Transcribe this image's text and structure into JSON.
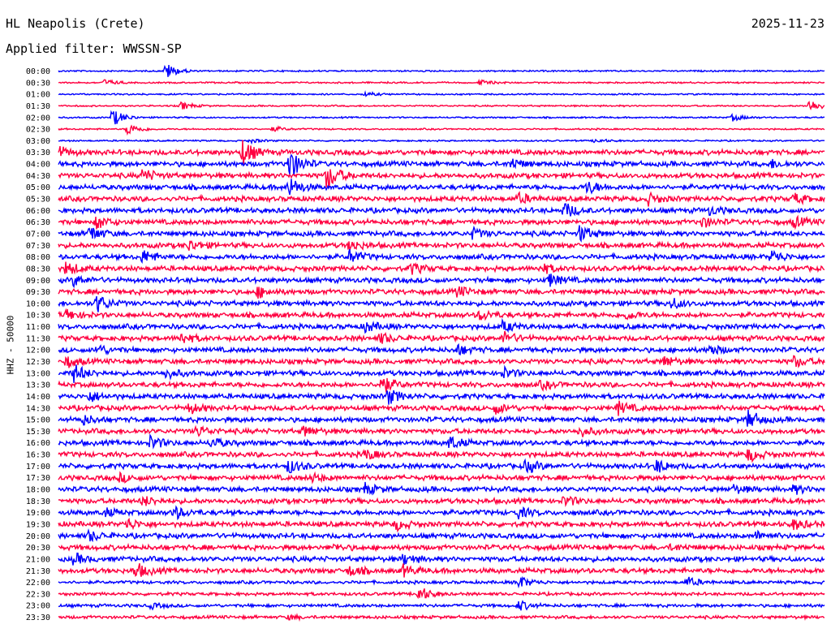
{
  "header": {
    "station": "HL Neapolis (Crete)",
    "date": "2025-11-23",
    "filter": "Applied filter: WWSSN-SP"
  },
  "chart_data": {
    "type": "line",
    "title": "HL Neapolis (Crete)",
    "ylabel": "HHZ - 50000",
    "colors": [
      "#0000ff",
      "#ff0040"
    ],
    "grid": false,
    "rows": [
      {
        "label": "00:00",
        "events": [
          [
            14,
            3.2
          ]
        ]
      },
      {
        "label": "00:30",
        "events": [
          [
            6,
            1.2
          ],
          [
            55,
            1.0
          ]
        ]
      },
      {
        "label": "01:00",
        "events": [
          [
            40,
            0.8
          ]
        ]
      },
      {
        "label": "01:30",
        "events": [
          [
            16,
            1.5
          ],
          [
            98,
            2.5
          ]
        ]
      },
      {
        "label": "02:00",
        "events": [
          [
            7,
            3.5
          ],
          [
            88,
            1.3
          ]
        ]
      },
      {
        "label": "02:30",
        "events": [
          [
            9,
            2.5
          ],
          [
            28,
            1.0
          ]
        ]
      },
      {
        "label": "03:00",
        "events": [
          [
            25,
            0.8
          ],
          [
            70,
            0.8
          ]
        ]
      },
      {
        "label": "03:30",
        "events": [
          [
            0,
            2.0
          ],
          [
            24,
            5.0
          ]
        ]
      },
      {
        "label": "04:00",
        "events": [
          [
            30,
            6.5
          ],
          [
            59,
            2.0
          ],
          [
            93,
            1.5
          ]
        ]
      },
      {
        "label": "04:30",
        "events": [
          [
            11,
            2.5
          ],
          [
            35,
            5.5
          ]
        ]
      },
      {
        "label": "05:00",
        "events": [
          [
            30,
            4.0
          ],
          [
            69,
            2.5
          ]
        ]
      },
      {
        "label": "05:30",
        "events": [
          [
            60,
            2.0
          ],
          [
            77,
            2.0
          ],
          [
            96,
            2.0
          ]
        ]
      },
      {
        "label": "06:00",
        "events": [
          [
            66,
            3.0
          ],
          [
            85,
            1.5
          ]
        ]
      },
      {
        "label": "06:30",
        "events": [
          [
            5,
            2.5
          ],
          [
            84,
            2.0
          ],
          [
            96,
            2.0
          ]
        ]
      },
      {
        "label": "07:00",
        "events": [
          [
            4,
            3.0
          ],
          [
            54,
            2.0
          ],
          [
            68,
            3.0
          ]
        ]
      },
      {
        "label": "07:30",
        "events": [
          [
            17,
            2.0
          ],
          [
            38,
            2.0
          ]
        ]
      },
      {
        "label": "08:00",
        "events": [
          [
            11,
            2.5
          ],
          [
            38,
            2.5
          ],
          [
            93,
            2.5
          ]
        ]
      },
      {
        "label": "08:30",
        "events": [
          [
            1,
            2.5
          ],
          [
            46,
            2.0
          ],
          [
            63,
            2.0
          ]
        ]
      },
      {
        "label": "09:00",
        "events": [
          [
            2,
            2.0
          ],
          [
            64,
            2.5
          ]
        ]
      },
      {
        "label": "09:30",
        "events": [
          [
            26,
            2.0
          ],
          [
            52,
            2.0
          ]
        ]
      },
      {
        "label": "10:00",
        "events": [
          [
            5,
            3.5
          ],
          [
            80,
            2.0
          ]
        ]
      },
      {
        "label": "10:30",
        "events": [
          [
            1,
            2.0
          ],
          [
            55,
            2.0
          ],
          [
            74,
            1.5
          ]
        ]
      },
      {
        "label": "11:00",
        "events": [
          [
            40,
            2.0
          ],
          [
            58,
            2.0
          ]
        ]
      },
      {
        "label": "11:30",
        "events": [
          [
            16,
            2.0
          ],
          [
            42,
            2.0
          ],
          [
            58,
            2.5
          ]
        ]
      },
      {
        "label": "12:00",
        "events": [
          [
            5,
            2.0
          ],
          [
            52,
            2.0
          ],
          [
            85,
            2.0
          ]
        ]
      },
      {
        "label": "12:30",
        "events": [
          [
            1,
            2.0
          ],
          [
            79,
            2.0
          ],
          [
            96,
            2.0
          ]
        ]
      },
      {
        "label": "13:00",
        "events": [
          [
            2,
            3.5
          ],
          [
            14,
            2.0
          ],
          [
            58,
            2.0
          ]
        ]
      },
      {
        "label": "13:30",
        "events": [
          [
            42,
            4.0
          ],
          [
            63,
            1.5
          ]
        ]
      },
      {
        "label": "14:00",
        "events": [
          [
            4,
            2.0
          ],
          [
            43,
            3.0
          ]
        ]
      },
      {
        "label": "14:30",
        "events": [
          [
            17,
            2.0
          ],
          [
            57,
            2.0
          ],
          [
            73,
            2.5
          ]
        ]
      },
      {
        "label": "15:00",
        "events": [
          [
            3,
            2.0
          ],
          [
            90,
            3.5
          ]
        ]
      },
      {
        "label": "15:30",
        "events": [
          [
            18,
            2.0
          ],
          [
            32,
            2.0
          ],
          [
            68,
            2.0
          ]
        ]
      },
      {
        "label": "16:00",
        "events": [
          [
            12,
            2.5
          ],
          [
            20,
            2.0
          ],
          [
            51,
            2.5
          ]
        ]
      },
      {
        "label": "16:30",
        "events": [
          [
            40,
            2.0
          ],
          [
            90,
            2.5
          ]
        ]
      },
      {
        "label": "17:00",
        "events": [
          [
            30,
            2.5
          ],
          [
            61,
            2.5
          ],
          [
            78,
            2.5
          ]
        ]
      },
      {
        "label": "17:30",
        "events": [
          [
            8,
            1.5
          ],
          [
            33,
            1.5
          ]
        ]
      },
      {
        "label": "18:00",
        "events": [
          [
            40,
            2.0
          ],
          [
            88,
            1.5
          ],
          [
            96,
            1.5
          ]
        ]
      },
      {
        "label": "18:30",
        "events": [
          [
            11,
            2.0
          ],
          [
            66,
            2.0
          ]
        ]
      },
      {
        "label": "19:00",
        "events": [
          [
            6,
            1.5
          ],
          [
            15,
            2.5
          ],
          [
            60,
            2.0
          ]
        ]
      },
      {
        "label": "19:30",
        "events": [
          [
            9,
            2.0
          ],
          [
            44,
            2.0
          ],
          [
            96,
            2.0
          ]
        ]
      },
      {
        "label": "20:00",
        "events": [
          [
            4,
            2.0
          ],
          [
            91,
            1.5
          ]
        ]
      },
      {
        "label": "20:30",
        "events": [
          [
            36,
            1.0
          ],
          [
            80,
            1.0
          ]
        ]
      },
      {
        "label": "21:00",
        "events": [
          [
            2,
            2.0
          ],
          [
            45,
            2.0
          ]
        ]
      },
      {
        "label": "21:30",
        "events": [
          [
            10,
            3.0
          ],
          [
            38,
            2.0
          ],
          [
            45,
            2.0
          ]
        ]
      },
      {
        "label": "22:00",
        "events": [
          [
            60,
            2.5
          ],
          [
            82,
            2.0
          ]
        ]
      },
      {
        "label": "22:30",
        "events": [
          [
            47,
            3.0
          ]
        ]
      },
      {
        "label": "23:00",
        "events": [
          [
            12,
            1.0
          ],
          [
            60,
            2.0
          ]
        ]
      },
      {
        "label": "23:30",
        "events": [
          [
            30,
            0.8
          ]
        ]
      }
    ]
  }
}
